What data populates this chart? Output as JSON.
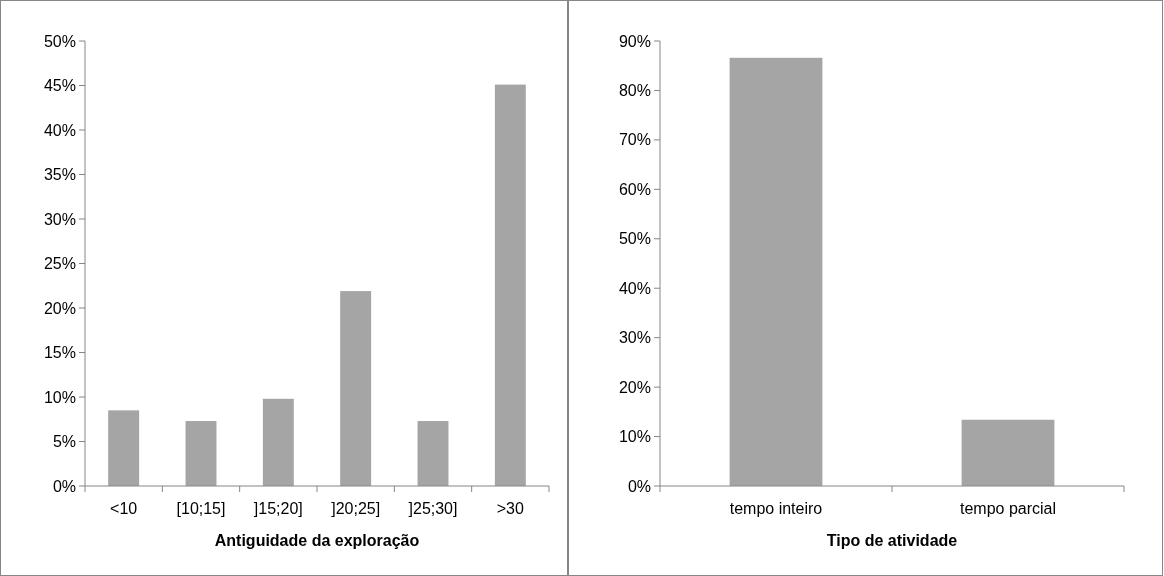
{
  "chart_data": [
    {
      "type": "bar",
      "xlabel": "Antiguidade da exploração",
      "categories": [
        "<10",
        "[10;15]",
        "]15;20]",
        "]20;25]",
        "]25;30]",
        ">30"
      ],
      "values": [
        8.5,
        7.3,
        9.8,
        21.9,
        7.3,
        45.1
      ],
      "color": "#a5a5a5",
      "ylim": [
        0,
        50
      ],
      "yticks": [
        {
          "value": 0,
          "label": "0%"
        },
        {
          "value": 5,
          "label": "5%"
        },
        {
          "value": 10,
          "label": "10%"
        },
        {
          "value": 15,
          "label": "15%"
        },
        {
          "value": 20,
          "label": "20%"
        },
        {
          "value": 25,
          "label": "25%"
        },
        {
          "value": 30,
          "label": "30%"
        },
        {
          "value": 35,
          "label": "35%"
        },
        {
          "value": 40,
          "label": "40%"
        },
        {
          "value": 45,
          "label": "45%"
        },
        {
          "value": 50,
          "label": "50%"
        }
      ]
    },
    {
      "type": "bar",
      "xlabel": "Tipo de atividade",
      "categories": [
        "tempo inteiro",
        "tempo parcial"
      ],
      "values": [
        86.6,
        13.4
      ],
      "color": "#a5a5a5",
      "ylim": [
        0,
        90
      ],
      "yticks": [
        {
          "value": 0,
          "label": "0%"
        },
        {
          "value": 10,
          "label": "10%"
        },
        {
          "value": 20,
          "label": "20%"
        },
        {
          "value": 30,
          "label": "30%"
        },
        {
          "value": 40,
          "label": "40%"
        },
        {
          "value": 50,
          "label": "50%"
        },
        {
          "value": 60,
          "label": "60%"
        },
        {
          "value": 70,
          "label": "70%"
        },
        {
          "value": 80,
          "label": "80%"
        },
        {
          "value": 90,
          "label": "90%"
        }
      ]
    }
  ]
}
